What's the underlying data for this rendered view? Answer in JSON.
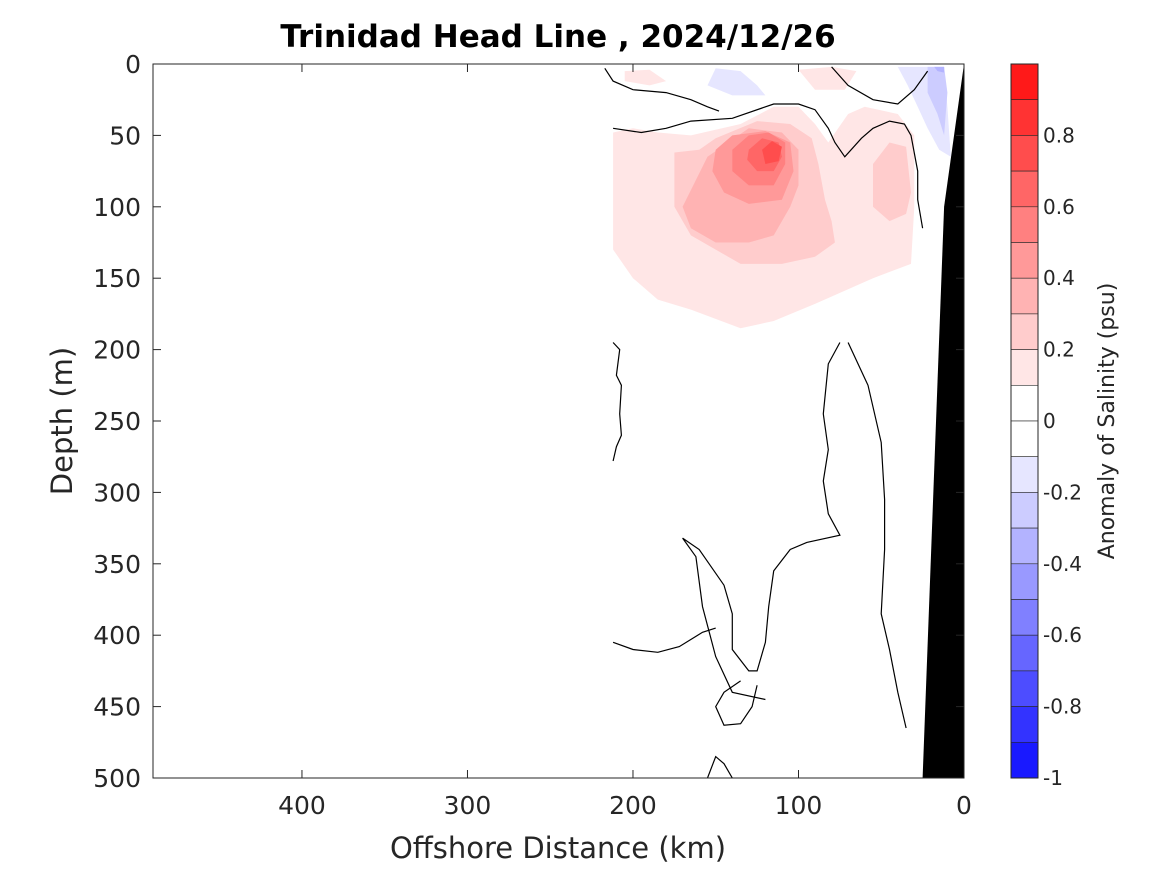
{
  "chart_data": {
    "type": "contour",
    "title": "Trinidad Head Line , 2024/12/26",
    "xlabel": "Offshore Distance (km)",
    "ylabel": "Depth (m)",
    "x_reversed": true,
    "y_reversed": true,
    "xlim": [
      0,
      490
    ],
    "ylim": [
      0,
      500
    ],
    "x_ticks": [
      400,
      300,
      200,
      100,
      0
    ],
    "y_ticks": [
      0,
      50,
      100,
      150,
      200,
      250,
      300,
      350,
      400,
      450,
      500
    ],
    "colorbar": {
      "label": "Anomaly of Salinity (psu)",
      "range": [
        -1,
        1
      ],
      "step": 0.1,
      "tick_values": [
        0.8,
        0.6,
        0.4,
        0.2,
        0,
        -0.2,
        -0.4,
        -0.6,
        -0.8,
        -1
      ],
      "tick_labels": [
        "0.8",
        "0.6",
        "0.4",
        "0.2",
        "0",
        "-0.2",
        "-0.4",
        "-0.6",
        "-0.8",
        "-1"
      ]
    },
    "filled_regions": [
      {
        "level": 0.1,
        "points": [
          [
            212,
            48
          ],
          [
            200,
            45
          ],
          [
            185,
            48
          ],
          [
            165,
            50
          ],
          [
            135,
            42
          ],
          [
            115,
            30
          ],
          [
            100,
            30
          ],
          [
            90,
            42
          ],
          [
            82,
            55
          ],
          [
            70,
            35
          ],
          [
            60,
            30
          ],
          [
            40,
            35
          ],
          [
            30,
            50
          ],
          [
            30,
            100
          ],
          [
            32,
            140
          ],
          [
            55,
            150
          ],
          [
            90,
            168
          ],
          [
            115,
            180
          ],
          [
            135,
            185
          ],
          [
            165,
            172
          ],
          [
            185,
            165
          ],
          [
            200,
            150
          ],
          [
            212,
            130
          ]
        ]
      },
      {
        "level": 0.1,
        "points": [
          [
            205,
            5
          ],
          [
            190,
            4
          ],
          [
            180,
            12
          ],
          [
            190,
            15
          ],
          [
            205,
            12
          ]
        ]
      },
      {
        "level": 0.1,
        "points": [
          [
            100,
            4
          ],
          [
            80,
            2
          ],
          [
            65,
            5
          ],
          [
            72,
            18
          ],
          [
            90,
            18
          ]
        ]
      },
      {
        "level": 0.2,
        "points": [
          [
            175,
            62
          ],
          [
            160,
            60
          ],
          [
            150,
            52
          ],
          [
            125,
            40
          ],
          [
            105,
            42
          ],
          [
            92,
            52
          ],
          [
            88,
            70
          ],
          [
            84,
            95
          ],
          [
            80,
            110
          ],
          [
            78,
            125
          ],
          [
            90,
            135
          ],
          [
            110,
            140
          ],
          [
            135,
            140
          ],
          [
            150,
            130
          ],
          [
            165,
            120
          ],
          [
            175,
            100
          ]
        ]
      },
      {
        "level": 0.2,
        "points": [
          [
            55,
            70
          ],
          [
            45,
            55
          ],
          [
            35,
            58
          ],
          [
            32,
            90
          ],
          [
            35,
            105
          ],
          [
            45,
            110
          ],
          [
            55,
            100
          ]
        ]
      },
      {
        "level": 0.3,
        "points": [
          [
            170,
            100
          ],
          [
            155,
            65
          ],
          [
            130,
            45
          ],
          [
            110,
            48
          ],
          [
            100,
            60
          ],
          [
            100,
            85
          ],
          [
            105,
            100
          ],
          [
            115,
            120
          ],
          [
            130,
            125
          ],
          [
            150,
            125
          ],
          [
            165,
            115
          ]
        ]
      },
      {
        "level": 0.4,
        "points": [
          [
            150,
            60
          ],
          [
            140,
            50
          ],
          [
            120,
            47
          ],
          [
            105,
            55
          ],
          [
            103,
            75
          ],
          [
            110,
            95
          ],
          [
            130,
            98
          ],
          [
            145,
            90
          ],
          [
            152,
            75
          ]
        ]
      },
      {
        "level": 0.5,
        "points": [
          [
            140,
            60
          ],
          [
            130,
            50
          ],
          [
            118,
            48
          ],
          [
            108,
            55
          ],
          [
            108,
            70
          ],
          [
            115,
            85
          ],
          [
            130,
            85
          ],
          [
            140,
            75
          ]
        ]
      },
      {
        "level": 0.6,
        "points": [
          [
            130,
            60
          ],
          [
            122,
            52
          ],
          [
            112,
            55
          ],
          [
            110,
            65
          ],
          [
            115,
            75
          ],
          [
            125,
            75
          ],
          [
            131,
            67
          ]
        ]
      },
      {
        "level": 0.7,
        "points": [
          [
            122,
            60
          ],
          [
            116,
            54
          ],
          [
            110,
            58
          ],
          [
            112,
            68
          ],
          [
            120,
            70
          ]
        ]
      },
      {
        "level": -0.1,
        "points": [
          [
            150,
            3
          ],
          [
            135,
            5
          ],
          [
            125,
            15
          ],
          [
            120,
            22
          ],
          [
            140,
            22
          ],
          [
            155,
            15
          ]
        ]
      },
      {
        "level": -0.1,
        "points": [
          [
            40,
            2
          ],
          [
            34,
            15
          ],
          [
            28,
            30
          ],
          [
            22,
            45
          ],
          [
            15,
            60
          ],
          [
            8,
            65
          ],
          [
            10,
            30
          ],
          [
            12,
            2
          ]
        ]
      },
      {
        "level": -0.2,
        "points": [
          [
            22,
            2
          ],
          [
            22,
            20
          ],
          [
            16,
            35
          ],
          [
            12,
            50
          ],
          [
            10,
            20
          ],
          [
            12,
            2
          ]
        ]
      },
      {
        "level": -0.3,
        "points": [
          [
            18,
            2
          ],
          [
            16,
            5
          ],
          [
            12,
            6
          ],
          [
            12,
            2
          ]
        ]
      }
    ],
    "zero_contours": [
      [
        [
          217,
          3
        ],
        [
          212,
          12
        ],
        [
          200,
          18
        ],
        [
          180,
          20
        ],
        [
          165,
          25
        ],
        [
          155,
          30
        ],
        [
          148,
          33
        ]
      ],
      [
        [
          212,
          45
        ],
        [
          195,
          48
        ],
        [
          180,
          45
        ],
        [
          165,
          40
        ],
        [
          140,
          38
        ],
        [
          115,
          28
        ],
        [
          100,
          28
        ],
        [
          90,
          32
        ],
        [
          82,
          45
        ],
        [
          78,
          55
        ],
        [
          72,
          65
        ],
        [
          62,
          52
        ],
        [
          55,
          45
        ],
        [
          45,
          40
        ],
        [
          36,
          42
        ],
        [
          32,
          50
        ],
        [
          28,
          75
        ],
        [
          28,
          95
        ],
        [
          25,
          115
        ]
      ],
      [
        [
          80,
          2
        ],
        [
          70,
          15
        ],
        [
          55,
          25
        ],
        [
          40,
          28
        ],
        [
          30,
          18
        ],
        [
          22,
          5
        ]
      ],
      [
        [
          212,
          195
        ],
        [
          208,
          200
        ],
        [
          210,
          218
        ],
        [
          207,
          225
        ],
        [
          208,
          245
        ],
        [
          207,
          260
        ],
        [
          210,
          268
        ],
        [
          212,
          278
        ]
      ],
      [
        [
          75,
          195
        ],
        [
          82,
          210
        ],
        [
          85,
          245
        ],
        [
          82,
          270
        ],
        [
          85,
          292
        ],
        [
          82,
          315
        ],
        [
          75,
          330
        ],
        [
          95,
          335
        ],
        [
          105,
          340
        ],
        [
          115,
          355
        ],
        [
          118,
          380
        ],
        [
          120,
          405
        ],
        [
          125,
          425
        ],
        [
          130,
          425
        ],
        [
          140,
          410
        ],
        [
          140,
          385
        ],
        [
          145,
          365
        ],
        [
          160,
          340
        ],
        [
          170,
          332
        ],
        [
          162,
          345
        ],
        [
          158,
          380
        ],
        [
          150,
          415
        ],
        [
          140,
          440
        ],
        [
          120,
          445
        ]
      ],
      [
        [
          70,
          195
        ],
        [
          58,
          225
        ],
        [
          50,
          265
        ],
        [
          48,
          305
        ],
        [
          48,
          340
        ],
        [
          50,
          385
        ],
        [
          45,
          410
        ],
        [
          40,
          440
        ],
        [
          35,
          465
        ]
      ],
      [
        [
          212,
          405
        ],
        [
          200,
          410
        ],
        [
          185,
          412
        ],
        [
          172,
          408
        ],
        [
          158,
          398
        ],
        [
          150,
          395
        ]
      ],
      [
        [
          125,
          435
        ],
        [
          128,
          450
        ],
        [
          135,
          462
        ],
        [
          145,
          463
        ],
        [
          150,
          450
        ],
        [
          145,
          440
        ],
        [
          135,
          432
        ]
      ],
      [
        [
          155,
          500
        ],
        [
          150,
          485
        ],
        [
          145,
          490
        ],
        [
          140,
          500
        ]
      ]
    ],
    "land": [
      [
        0,
        0
      ],
      [
        0,
        500
      ],
      [
        25,
        500
      ],
      [
        12,
        100
      ]
    ]
  }
}
